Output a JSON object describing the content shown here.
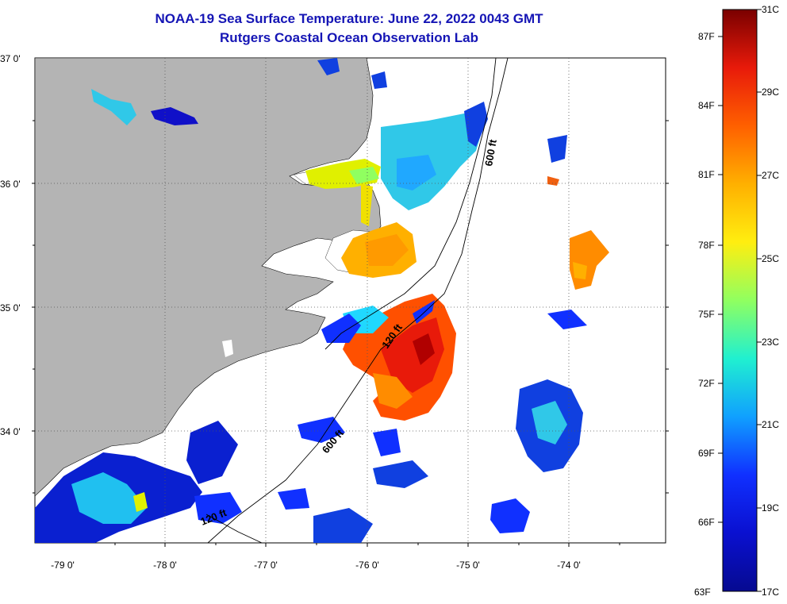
{
  "title": "NOAA-19 Sea Surface Temperature:  June 22, 2022 0043 GMT",
  "subtitle": "Rutgers Coastal Ocean Observation Lab",
  "lat_labels": [
    "37 0'",
    "36 0'",
    "35 0'",
    "34 0'"
  ],
  "lon_labels": [
    "-79 0'",
    "-78 0'",
    "-77 0'",
    "-76 0'",
    "-75 0'",
    "-74 0'"
  ],
  "contour_labels": {
    "c600_north": "600 ft",
    "c120_mid": "120 ft",
    "c600_south": "600 ft",
    "c120_south": "120 ft"
  },
  "colorbar": {
    "f_labels": [
      "87F",
      "84F",
      "81F",
      "78F",
      "75F",
      "72F",
      "69F",
      "66F",
      "63F"
    ],
    "c_labels": [
      "31C",
      "29C",
      "27C",
      "25C",
      "23C",
      "21C",
      "19C",
      "17C"
    ],
    "colors": [
      "#7a0000",
      "#b00000",
      "#e81a0a",
      "#ff5a00",
      "#ff8c00",
      "#ffbd00",
      "#ffee10",
      "#c8ff40",
      "#70ff80",
      "#20f0d0",
      "#10b8ff",
      "#1470ff",
      "#1030ff",
      "#0a10d0",
      "#060a90"
    ]
  },
  "colors": {
    "land": "#b4b4b4",
    "title": "#1515b5",
    "grid": "#555555"
  }
}
